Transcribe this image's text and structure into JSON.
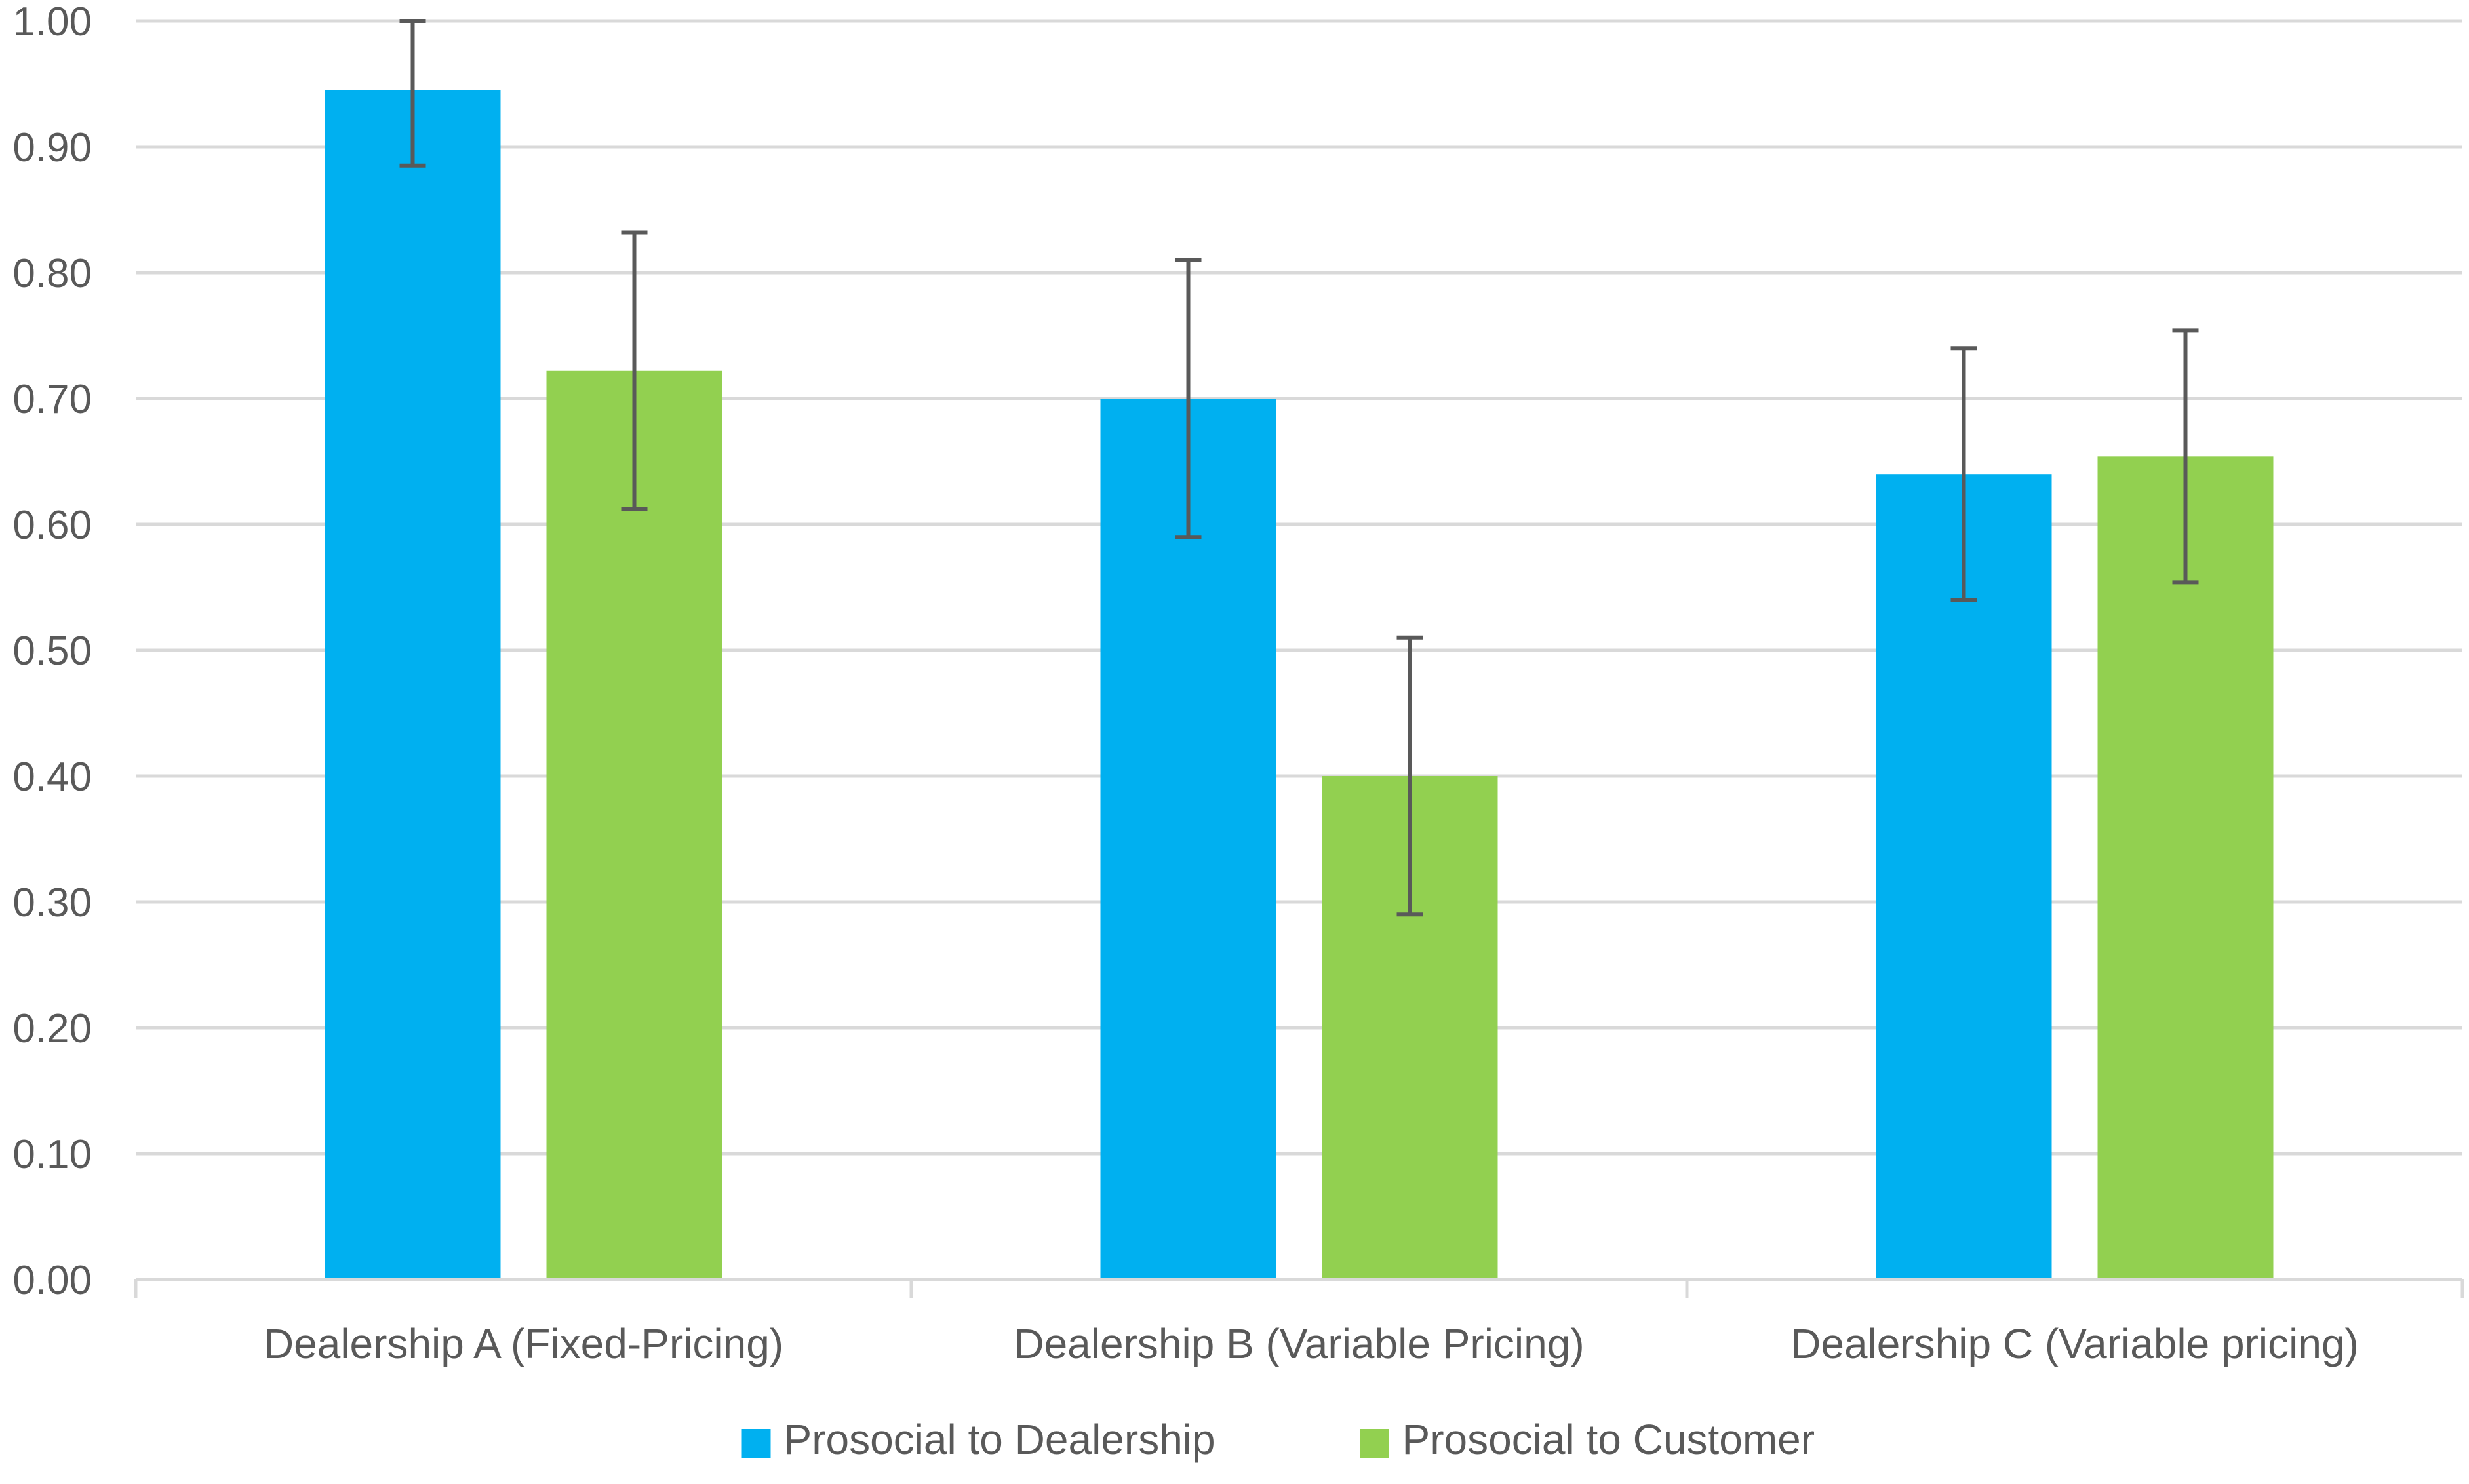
{
  "chart_data": {
    "type": "bar",
    "title": "",
    "xlabel": "",
    "ylabel": "",
    "ylim": [
      0,
      1
    ],
    "yticks": [
      "0.00",
      "0.10",
      "0.20",
      "0.30",
      "0.40",
      "0.50",
      "0.60",
      "0.70",
      "0.80",
      "0.90",
      "1.00"
    ],
    "grid": true,
    "legend_position": "bottom",
    "categories": [
      "Dealership A (Fixed-Pricing)",
      "Dealership B (Variable Pricing)",
      "Dealership C (Variable pricing)"
    ],
    "series": [
      {
        "name": "Prosocial to Dealership",
        "color": "#00B0F0",
        "values": [
          0.945,
          0.7,
          0.64
        ],
        "error_low": [
          0.885,
          0.59,
          0.54
        ],
        "error_high": [
          1.0,
          0.81,
          0.74
        ]
      },
      {
        "name": "Prosocial to Customer",
        "color": "#92D050",
        "values": [
          0.722,
          0.4,
          0.654
        ],
        "error_low": [
          0.612,
          0.29,
          0.554
        ],
        "error_high": [
          0.832,
          0.51,
          0.754
        ]
      }
    ]
  }
}
